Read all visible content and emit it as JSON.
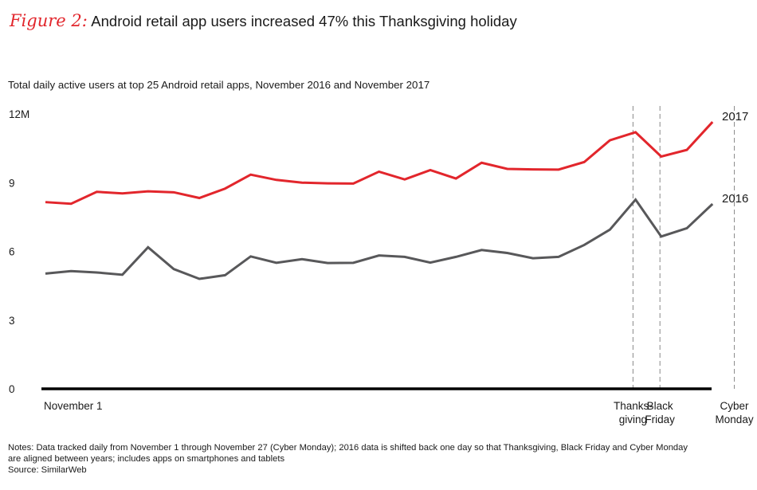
{
  "figure_label": "Figure 2:",
  "figure_title": "Android retail app users increased 47% this Thanksgiving holiday",
  "subtitle": "Total daily active users at top 25 Android retail apps, November 2016 and November 2017",
  "notes": [
    "Notes: Data tracked daily from November 1 through November 27 (Cyber Monday); 2016 data is shifted back one day so that Thanksgiving, Black Friday and Cyber Monday",
    "are aligned between years; includes apps on smartphones and tablets",
    "Source: SimilarWeb"
  ],
  "colors": {
    "series_2017": "#e2262c",
    "series_2016": "#58585a",
    "axis": "#000000",
    "marker": "#888888"
  },
  "chart_data": {
    "type": "line",
    "title": "Android retail app users increased 47% this Thanksgiving holiday",
    "x": [
      1,
      2,
      3,
      4,
      5,
      6,
      7,
      8,
      9,
      10,
      11,
      12,
      13,
      14,
      15,
      16,
      17,
      18,
      19,
      20,
      21,
      22,
      23,
      24,
      25,
      26,
      27
    ],
    "ylim": [
      0,
      12
    ],
    "yticks": [
      {
        "value": 0,
        "label": "0"
      },
      {
        "value": 3,
        "label": "3"
      },
      {
        "value": 6,
        "label": "6"
      },
      {
        "value": 9,
        "label": "9"
      },
      {
        "value": 12,
        "label": "12M"
      }
    ],
    "grid": false,
    "series": [
      {
        "name": "2017",
        "color": "#e2262c",
        "values": [
          8.15,
          8.08,
          8.6,
          8.53,
          8.62,
          8.58,
          8.33,
          8.74,
          9.35,
          9.12,
          9.0,
          8.97,
          8.96,
          9.48,
          9.14,
          9.55,
          9.18,
          9.87,
          9.6,
          9.58,
          9.57,
          9.9,
          10.85,
          11.2,
          10.14,
          10.43,
          11.65
        ]
      },
      {
        "name": "2016",
        "color": "#58585a",
        "values": [
          5.03,
          5.14,
          5.08,
          4.98,
          6.18,
          5.23,
          4.8,
          4.96,
          5.78,
          5.5,
          5.66,
          5.49,
          5.5,
          5.82,
          5.76,
          5.51,
          5.76,
          6.06,
          5.93,
          5.7,
          5.76,
          6.28,
          6.95,
          8.26,
          6.65,
          7.01,
          8.07
        ]
      }
    ],
    "x_annotations": [
      {
        "x": 1,
        "label": [
          "November 1"
        ]
      },
      {
        "x": 23.9,
        "label": [
          "Thanks-",
          "giving"
        ],
        "dashed": true
      },
      {
        "x": 24.95,
        "label": [
          "Black",
          "Friday"
        ],
        "dashed": true
      },
      {
        "x": 27.85,
        "label": [
          "Cyber",
          "Monday"
        ],
        "dashed": true
      }
    ]
  }
}
